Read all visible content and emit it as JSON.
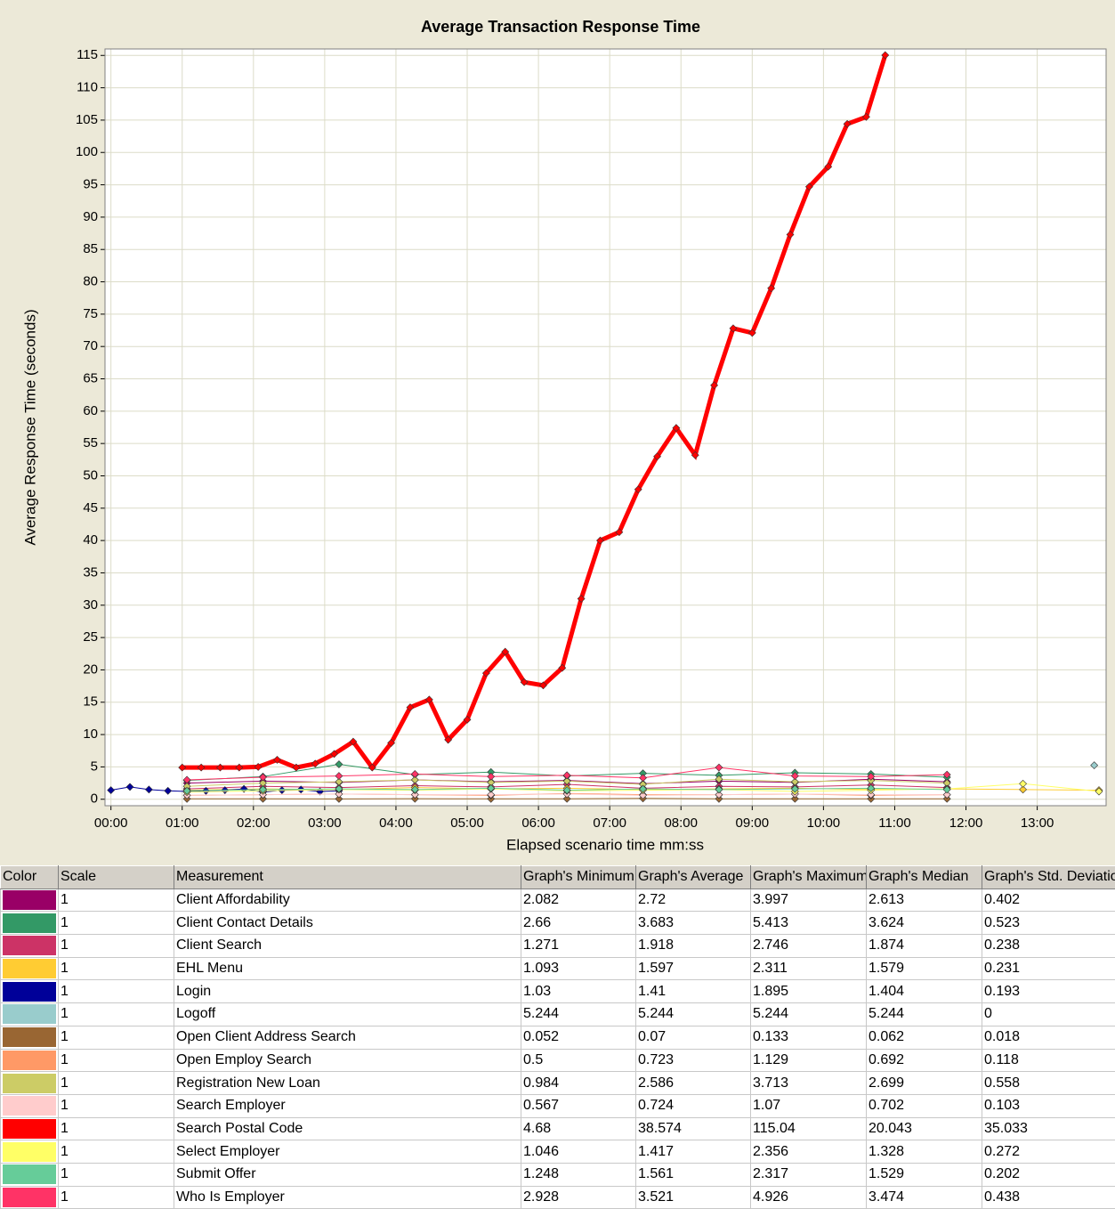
{
  "chart_data": {
    "type": "line",
    "title": "Average Transaction Response Time",
    "ylabel": "Average Response Time (seconds)",
    "xlabel": "Elapsed scenario time mm:ss",
    "xlim": [
      -5,
      838
    ],
    "ylim": [
      -1,
      116
    ],
    "xticks": [
      {
        "value": 0,
        "label": "00:00"
      },
      {
        "value": 60,
        "label": "01:00"
      },
      {
        "value": 120,
        "label": "02:00"
      },
      {
        "value": 180,
        "label": "03:00"
      },
      {
        "value": 240,
        "label": "04:00"
      },
      {
        "value": 300,
        "label": "05:00"
      },
      {
        "value": 360,
        "label": "06:00"
      },
      {
        "value": 420,
        "label": "07:00"
      },
      {
        "value": 480,
        "label": "08:00"
      },
      {
        "value": 540,
        "label": "09:00"
      },
      {
        "value": 600,
        "label": "10:00"
      },
      {
        "value": 660,
        "label": "11:00"
      },
      {
        "value": 720,
        "label": "12:00"
      },
      {
        "value": 780,
        "label": "13:00"
      }
    ],
    "yticks": [
      0,
      5,
      10,
      15,
      20,
      25,
      30,
      35,
      40,
      45,
      50,
      55,
      60,
      65,
      70,
      75,
      80,
      85,
      90,
      95,
      100,
      105,
      110,
      115
    ],
    "grid": true,
    "series": [
      {
        "name": "Client Affordability",
        "color": "#990066",
        "x": [
          64,
          128,
          192,
          256,
          320,
          384,
          448,
          512,
          576,
          640,
          704
        ],
        "values": [
          2.5,
          2.8,
          2.6,
          3.0,
          2.7,
          2.9,
          2.4,
          2.8,
          2.6,
          3.1,
          2.7
        ]
      },
      {
        "name": "Client Contact Details",
        "color": "#339966",
        "x": [
          64,
          128,
          192,
          256,
          320,
          384,
          448,
          512,
          576,
          640,
          704
        ],
        "values": [
          2.9,
          3.5,
          5.4,
          3.8,
          4.2,
          3.6,
          4.0,
          3.7,
          4.1,
          3.9,
          3.4
        ]
      },
      {
        "name": "Client Search",
        "color": "#cc3366",
        "x": [
          64,
          128,
          192,
          256,
          320,
          384,
          448,
          512,
          576,
          640,
          704
        ],
        "values": [
          1.6,
          2.0,
          1.8,
          2.1,
          1.9,
          2.3,
          1.7,
          2.0,
          1.9,
          2.2,
          1.8
        ]
      },
      {
        "name": "EHL Menu",
        "color": "#ffcc33",
        "x": [
          64,
          128,
          192,
          256,
          320,
          384,
          448,
          512,
          576,
          640,
          704,
          768,
          832
        ],
        "values": [
          1.4,
          1.6,
          1.5,
          1.8,
          1.6,
          1.7,
          1.5,
          1.6,
          1.7,
          1.5,
          1.6,
          1.5,
          1.4
        ]
      },
      {
        "name": "Login",
        "color": "#000099",
        "x": [
          0,
          16,
          32,
          48,
          64,
          80,
          96,
          112,
          128,
          144,
          160,
          176,
          192
        ],
        "values": [
          1.4,
          1.9,
          1.5,
          1.3,
          1.2,
          1.3,
          1.4,
          1.6,
          1.1,
          1.4,
          1.5,
          1.2,
          1.3
        ]
      },
      {
        "name": "Logoff",
        "color": "#99cccc",
        "x": [
          828
        ],
        "values": [
          5.244
        ]
      },
      {
        "name": "Open Client Address Search",
        "color": "#996633",
        "x": [
          64,
          128,
          192,
          256,
          320,
          384,
          448,
          512,
          576,
          640,
          704
        ],
        "values": [
          0.06,
          0.07,
          0.05,
          0.08,
          0.06,
          0.07,
          0.13,
          0.06,
          0.07,
          0.06,
          0.07
        ]
      },
      {
        "name": "Open Employ Search",
        "color": "#ff9966",
        "x": [
          64,
          128,
          192,
          256,
          320,
          384,
          448,
          512,
          576,
          640,
          704
        ],
        "values": [
          0.6,
          0.7,
          0.8,
          0.7,
          0.6,
          0.9,
          0.7,
          0.7,
          0.8,
          0.6,
          0.7
        ]
      },
      {
        "name": "Registration New Loan",
        "color": "#cccc66",
        "x": [
          64,
          128,
          192,
          256,
          320,
          384,
          448,
          512,
          576,
          640,
          704
        ],
        "values": [
          2.0,
          2.5,
          2.7,
          3.0,
          2.6,
          2.8,
          2.3,
          3.1,
          2.7,
          2.9,
          2.5
        ]
      },
      {
        "name": "Search Employer",
        "color": "#ffcccc",
        "x": [
          64,
          128,
          192,
          256,
          320,
          384,
          448,
          512,
          576,
          640,
          704
        ],
        "values": [
          0.6,
          0.7,
          0.8,
          0.7,
          0.7,
          0.8,
          0.6,
          0.7,
          0.8,
          0.7,
          0.7
        ]
      },
      {
        "name": "Search Postal Code",
        "color": "#ff0000",
        "width": 5,
        "x": [
          60,
          76,
          92,
          108,
          124,
          140,
          156,
          172,
          188,
          204,
          220,
          236,
          252,
          268,
          284,
          300,
          316,
          332,
          348,
          364,
          380,
          396,
          412,
          428,
          444,
          460,
          476,
          492,
          508,
          524,
          540,
          556,
          572,
          588,
          604,
          620,
          636,
          652
        ],
        "values": [
          4.9,
          4.9,
          4.9,
          4.9,
          5.0,
          6.1,
          4.9,
          5.5,
          7.0,
          8.9,
          4.9,
          8.7,
          14.2,
          15.4,
          9.2,
          12.3,
          19.5,
          22.8,
          18.1,
          17.6,
          20.3,
          31.0,
          40.0,
          41.3,
          47.9,
          53.0,
          57.4,
          53.2,
          64.0,
          72.8,
          72.1,
          79.0,
          87.3,
          94.7,
          97.8,
          104.4,
          105.5,
          115.04
        ]
      },
      {
        "name": "Select Employer",
        "color": "#ffff66",
        "x": [
          64,
          128,
          192,
          256,
          320,
          384,
          448,
          512,
          576,
          640,
          704,
          768,
          832
        ],
        "values": [
          1.1,
          1.3,
          1.5,
          1.4,
          1.6,
          1.3,
          1.4,
          1.5,
          1.2,
          1.4,
          1.6,
          2.4,
          1.2
        ]
      },
      {
        "name": "Submit Offer",
        "color": "#66cc99",
        "x": [
          64,
          128,
          192,
          256,
          320,
          384,
          448,
          512,
          576,
          640,
          704
        ],
        "values": [
          1.3,
          1.5,
          1.6,
          1.5,
          1.7,
          1.4,
          1.6,
          1.5,
          1.6,
          1.7,
          1.5
        ]
      },
      {
        "name": "Who Is Employer",
        "color": "#ff3366",
        "x": [
          64,
          128,
          192,
          256,
          320,
          384,
          448,
          512,
          576,
          640,
          704
        ],
        "values": [
          3.0,
          3.4,
          3.6,
          3.9,
          3.5,
          3.7,
          3.3,
          4.9,
          3.6,
          3.5,
          3.8
        ]
      }
    ]
  },
  "table": {
    "columns": [
      "Color",
      "Scale",
      "Measurement",
      "Graph's Minimum",
      "Graph's Average",
      "Graph's Maximum",
      "Graph's Median",
      "Graph's Std. Deviation"
    ],
    "rows": [
      [
        1,
        2.082,
        2.72,
        3.997,
        2.613,
        0.402
      ],
      [
        1,
        2.66,
        3.683,
        5.413,
        3.624,
        0.523
      ],
      [
        1,
        1.271,
        1.918,
        2.746,
        1.874,
        0.238
      ],
      [
        1,
        1.093,
        1.597,
        2.311,
        1.579,
        0.231
      ],
      [
        1,
        1.03,
        1.41,
        1.895,
        1.404,
        0.193
      ],
      [
        1,
        5.244,
        5.244,
        5.244,
        5.244,
        0
      ],
      [
        1,
        0.052,
        0.07,
        0.133,
        0.062,
        0.018
      ],
      [
        1,
        0.5,
        0.723,
        1.129,
        0.692,
        0.118
      ],
      [
        1,
        0.984,
        2.586,
        3.713,
        2.699,
        0.558
      ],
      [
        1,
        0.567,
        0.724,
        1.07,
        0.702,
        0.103
      ],
      [
        1,
        4.68,
        38.574,
        115.04,
        20.043,
        35.033
      ],
      [
        1,
        1.046,
        1.417,
        2.356,
        1.328,
        0.272
      ],
      [
        1,
        1.248,
        1.561,
        2.317,
        1.529,
        0.202
      ],
      [
        1,
        2.928,
        3.521,
        4.926,
        3.474,
        0.438
      ]
    ]
  }
}
